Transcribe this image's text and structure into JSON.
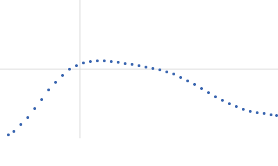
{
  "chart_data": {
    "type": "scatter",
    "x": [
      12,
      20,
      30,
      40,
      50,
      60,
      70,
      80,
      90,
      100,
      110,
      120,
      130,
      140,
      150,
      160,
      170,
      180,
      190,
      200,
      210,
      220,
      230,
      240,
      250,
      260,
      270,
      280,
      290,
      300,
      310,
      320,
      330,
      340,
      350,
      360,
      370,
      380,
      390,
      398
    ],
    "values": [
      5,
      10,
      20,
      30,
      43,
      56,
      70,
      81,
      91,
      100,
      105,
      109,
      111,
      112,
      112,
      111,
      110,
      108,
      107,
      105,
      103,
      101,
      99,
      96,
      93,
      88,
      83,
      78,
      72,
      66,
      60,
      55,
      50,
      46,
      42,
      39,
      37,
      36,
      34,
      33
    ],
    "color": "#3a66b0",
    "xlim": [
      0,
      400
    ],
    "ylim": [
      0,
      200
    ],
    "xticks": [
      115
    ],
    "yticks": [
      100
    ],
    "grid": true
  }
}
